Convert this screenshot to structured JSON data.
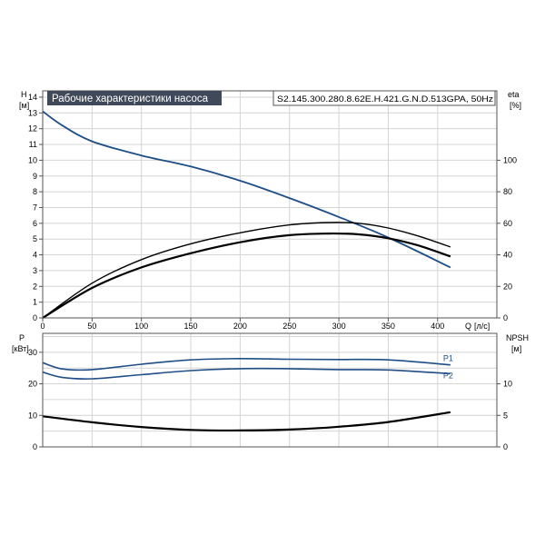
{
  "chart_data": [
    {
      "type": "line",
      "title": "Рабочие характеристики насоса",
      "model": "S2.145.300.280.8.62E.H.421.G.N.D.513GPA, 50Hz",
      "y_label_main": "H",
      "y_unit_main": "[м]",
      "y_label_right": "eta",
      "y_unit_right": "[%]",
      "x_label": "Q",
      "x_unit": "[л/с]",
      "x_ticks": [
        0,
        50,
        100,
        150,
        200,
        250,
        300,
        350,
        400
      ],
      "xlim": [
        0,
        460
      ],
      "y_ticks": [
        0,
        1,
        2,
        3,
        4,
        5,
        6,
        7,
        8,
        9,
        10,
        11,
        12,
        13,
        14
      ],
      "ylim": [
        0,
        14.4
      ],
      "y2_ticks": [
        0,
        20,
        40,
        60,
        80,
        100
      ],
      "y2lim": [
        0,
        144
      ],
      "grid": true,
      "series": [
        {
          "key": "h_curve",
          "axis": "left",
          "color": "#1f4e87",
          "x": [
            0,
            20,
            50,
            100,
            150,
            200,
            250,
            300,
            350,
            413
          ],
          "y": [
            13.1,
            12.2,
            11.2,
            10.3,
            9.6,
            8.7,
            7.6,
            6.4,
            5.1,
            3.2
          ]
        },
        {
          "key": "eta_upper",
          "axis": "right",
          "color": "#000000",
          "x": [
            0,
            50,
            100,
            150,
            200,
            250,
            290,
            320,
            350,
            380,
            413
          ],
          "y": [
            0,
            22,
            37,
            47,
            54,
            59,
            60.5,
            60,
            57,
            52,
            45
          ]
        },
        {
          "key": "eta_lower",
          "axis": "right",
          "color": "#000000",
          "x": [
            0,
            50,
            100,
            150,
            200,
            250,
            290,
            320,
            350,
            380,
            413
          ],
          "y": [
            0,
            19,
            32,
            41,
            48,
            52.5,
            53.5,
            53,
            50.5,
            46,
            39
          ]
        }
      ]
    },
    {
      "type": "line",
      "y_label_left": "P",
      "y_unit_left": "[кВт]",
      "y_label_right": "NPSH",
      "y_unit_right": "[м]",
      "y_ticks": [
        0,
        10,
        20,
        30
      ],
      "ylim": [
        0,
        36
      ],
      "y2_ticks": [
        0,
        5,
        10
      ],
      "y2lim": [
        0,
        18
      ],
      "xlim": [
        0,
        460
      ],
      "grid": true,
      "series": [
        {
          "key": "p1",
          "name": "P1",
          "axis": "left",
          "color": "#1f4e87",
          "x": [
            0,
            20,
            50,
            100,
            150,
            200,
            250,
            300,
            350,
            413
          ],
          "y": [
            26.7,
            24.7,
            24.5,
            26.2,
            27.6,
            28.0,
            27.8,
            27.7,
            27.6,
            26.0
          ]
        },
        {
          "key": "p2",
          "name": "P2",
          "axis": "left",
          "color": "#1f4e87",
          "x": [
            0,
            20,
            50,
            100,
            150,
            200,
            250,
            300,
            350,
            413
          ],
          "y": [
            23.7,
            22.0,
            21.6,
            22.9,
            24.2,
            24.8,
            24.8,
            24.5,
            24.4,
            23.2
          ]
        },
        {
          "key": "npsh",
          "axis": "right",
          "color": "#000000",
          "x": [
            0,
            50,
            100,
            150,
            200,
            250,
            300,
            350,
            413
          ],
          "y": [
            4.85,
            3.9,
            3.15,
            2.7,
            2.6,
            2.75,
            3.2,
            3.95,
            5.5
          ]
        }
      ]
    }
  ]
}
